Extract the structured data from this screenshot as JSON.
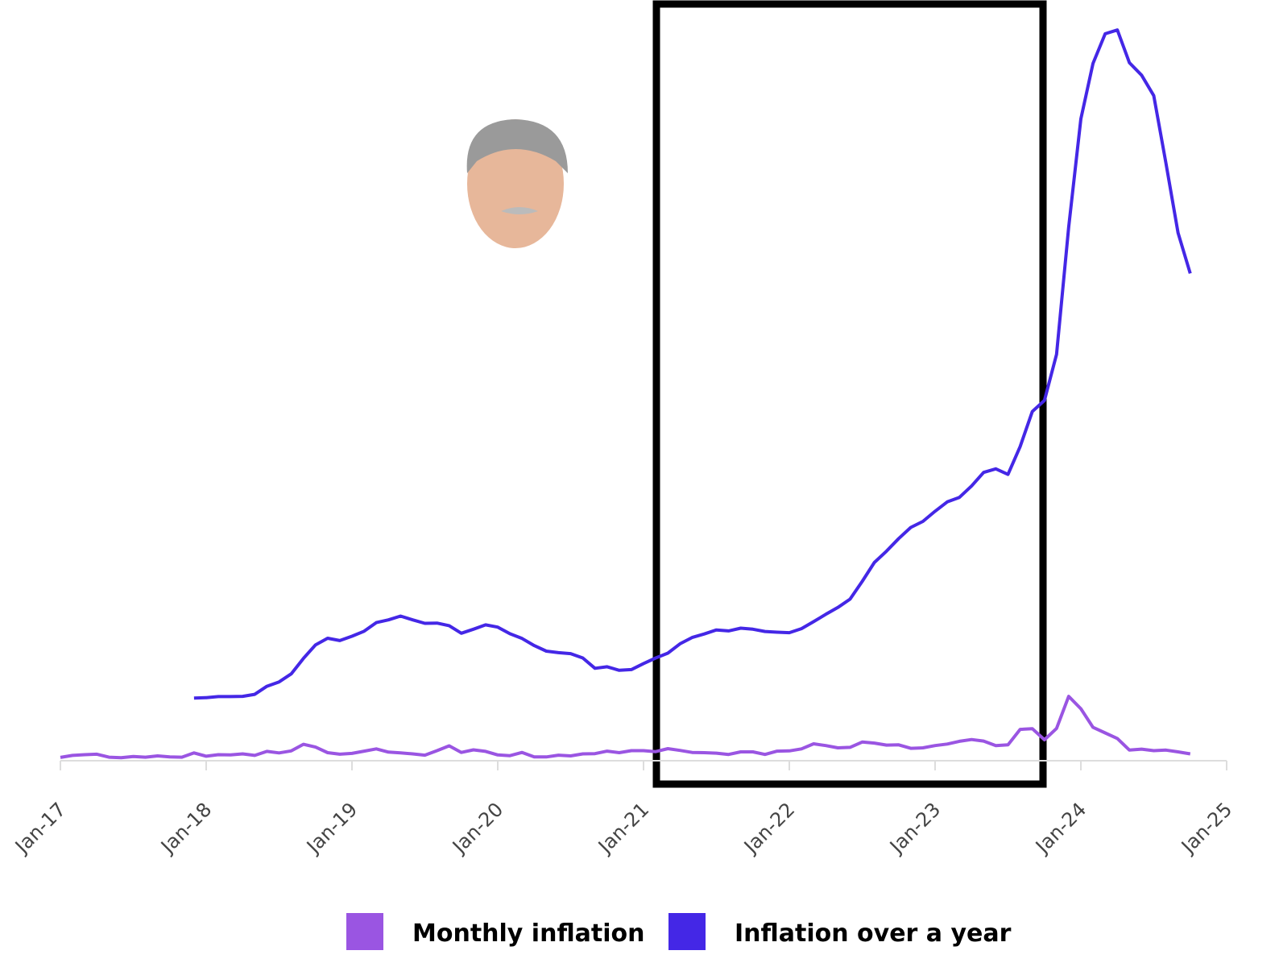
{
  "chart_data": {
    "type": "line",
    "x": [
      "2017-01",
      "2017-02",
      "2017-03",
      "2017-04",
      "2017-05",
      "2017-06",
      "2017-07",
      "2017-08",
      "2017-09",
      "2017-10",
      "2017-11",
      "2017-12",
      "2018-01",
      "2018-02",
      "2018-03",
      "2018-04",
      "2018-05",
      "2018-06",
      "2018-07",
      "2018-08",
      "2018-09",
      "2018-10",
      "2018-11",
      "2018-12",
      "2019-01",
      "2019-02",
      "2019-03",
      "2019-04",
      "2019-05",
      "2019-06",
      "2019-07",
      "2019-08",
      "2019-09",
      "2019-10",
      "2019-11",
      "2019-12",
      "2020-01",
      "2020-02",
      "2020-03",
      "2020-04",
      "2020-05",
      "2020-06",
      "2020-07",
      "2020-08",
      "2020-09",
      "2020-10",
      "2020-11",
      "2020-12",
      "2021-01",
      "2021-02",
      "2021-03",
      "2021-04",
      "2021-05",
      "2021-06",
      "2021-07",
      "2021-08",
      "2021-09",
      "2021-10",
      "2021-11",
      "2021-12",
      "2022-01",
      "2022-02",
      "2022-03",
      "2022-04",
      "2022-05",
      "2022-06",
      "2022-07",
      "2022-08",
      "2022-09",
      "2022-10",
      "2022-11",
      "2022-12",
      "2023-01",
      "2023-02",
      "2023-03",
      "2023-04",
      "2023-05",
      "2023-06",
      "2023-07",
      "2023-08",
      "2023-09",
      "2023-10",
      "2023-11",
      "2023-12",
      "2024-01",
      "2024-02",
      "2024-03",
      "2024-04",
      "2024-05",
      "2024-06",
      "2024-07",
      "2024-08",
      "2024-09",
      "2024-10"
    ],
    "series": [
      {
        "name": "Monthly inflation",
        "color": "#9a55e2",
        "values": [
          1.3,
          2.1,
          2.4,
          2.6,
          1.4,
          1.2,
          1.7,
          1.4,
          1.9,
          1.5,
          1.4,
          3.1,
          1.8,
          2.4,
          2.3,
          2.7,
          2.1,
          3.7,
          3.1,
          3.9,
          6.5,
          5.4,
          3.2,
          2.6,
          2.9,
          3.8,
          4.7,
          3.4,
          3.1,
          2.7,
          2.2,
          4.0,
          5.9,
          3.3,
          4.3,
          3.7,
          2.3,
          2.0,
          3.3,
          1.5,
          1.5,
          2.2,
          1.9,
          2.7,
          2.8,
          3.8,
          3.2,
          4.0,
          4.0,
          3.6,
          4.8,
          4.1,
          3.3,
          3.2,
          3.0,
          2.5,
          3.5,
          3.5,
          2.5,
          3.8,
          3.9,
          4.7,
          6.7,
          6.0,
          5.1,
          5.3,
          7.4,
          7.0,
          6.2,
          6.3,
          4.9,
          5.1,
          6.0,
          6.6,
          7.7,
          8.4,
          7.8,
          6.0,
          6.3,
          12.4,
          12.7,
          8.3,
          12.8,
          25.5,
          20.6,
          13.2,
          11.0,
          8.8,
          4.2,
          4.6,
          4.0,
          4.2,
          3.5,
          2.7
        ]
      },
      {
        "name": "Inflation over a year",
        "color": "#4427e6",
        "values": [
          null,
          null,
          null,
          null,
          null,
          null,
          null,
          null,
          null,
          null,
          null,
          24.8,
          25.0,
          25.4,
          25.4,
          25.5,
          26.3,
          29.5,
          31.2,
          34.4,
          40.5,
          45.9,
          48.5,
          47.6,
          49.3,
          51.3,
          54.7,
          55.8,
          57.3,
          55.8,
          54.4,
          54.5,
          53.5,
          50.5,
          52.1,
          53.8,
          52.9,
          50.3,
          48.4,
          45.6,
          43.4,
          42.8,
          42.4,
          40.7,
          36.6,
          37.2,
          35.8,
          36.1,
          38.5,
          40.7,
          42.6,
          46.3,
          48.8,
          50.2,
          51.8,
          51.4,
          52.5,
          52.1,
          51.2,
          50.9,
          50.7,
          52.3,
          55.1,
          58.0,
          60.7,
          64.0,
          71.0,
          78.5,
          83.0,
          88.0,
          92.4,
          94.8,
          98.8,
          102.5,
          104.3,
          108.8,
          114.2,
          115.6,
          113.4,
          124.4,
          138.3,
          142.7,
          160.9,
          211.4,
          254.2,
          276.2,
          287.9,
          289.4,
          276.4,
          271.5,
          263.4,
          236.7,
          209.0,
          193.0
        ]
      }
    ],
    "xlim": [
      "2017-01",
      "2025-01"
    ],
    "xticks": [
      {
        "value": "2017-01",
        "label": "Jan-17"
      },
      {
        "value": "2018-01",
        "label": "Jan-18"
      },
      {
        "value": "2019-01",
        "label": "Jan-19"
      },
      {
        "value": "2020-01",
        "label": "Jan-20"
      },
      {
        "value": "2021-01",
        "label": "Jan-21"
      },
      {
        "value": "2022-01",
        "label": "Jan-22"
      },
      {
        "value": "2023-01",
        "label": "Jan-23"
      },
      {
        "value": "2024-01",
        "label": "Jan-24"
      },
      {
        "value": "2025-01",
        "label": "Jan-25"
      }
    ],
    "ylim": [
      0,
      300
    ]
  }
}
